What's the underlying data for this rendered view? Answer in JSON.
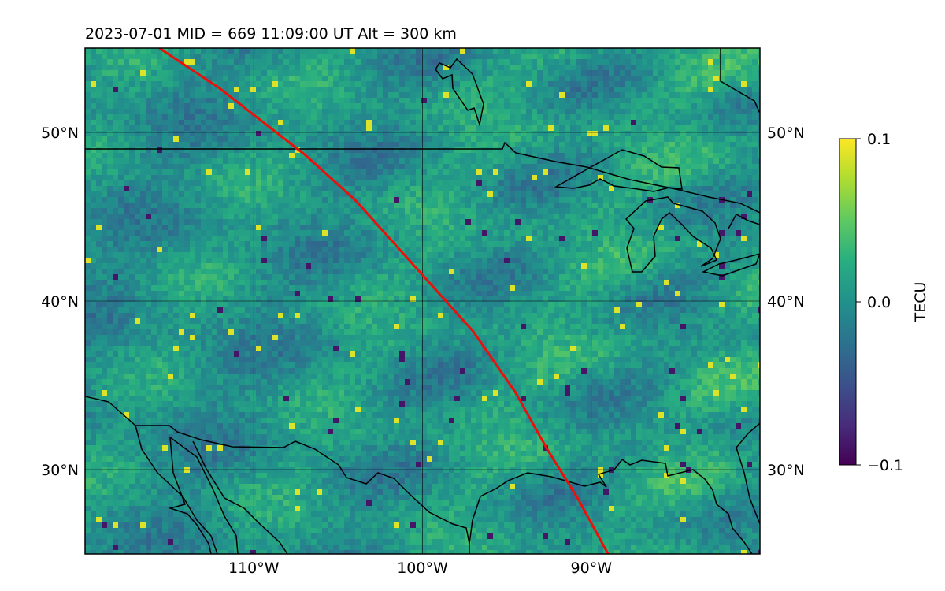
{
  "title": "2023-07-01  MID = 669    11:09:00  UT  Alt = 300 km",
  "map": {
    "lon_range": [
      -120,
      -80
    ],
    "lat_range": [
      25,
      55
    ],
    "lon_ticks": [
      {
        "value": -110,
        "label": "110°W"
      },
      {
        "value": -100,
        "label": "100°W"
      },
      {
        "value": -90,
        "label": "90°W"
      }
    ],
    "lat_ticks": [
      {
        "value": 50,
        "label": "50°N"
      },
      {
        "value": 40,
        "label": "40°N"
      },
      {
        "value": 30,
        "label": "30°N"
      }
    ],
    "gridlines": true,
    "field_colormap": "viridis",
    "track_color": "#e8120c",
    "track": [
      [
        -115.6,
        55
      ],
      [
        -112,
        52.6
      ],
      [
        -107,
        48.7
      ],
      [
        -104,
        46
      ],
      [
        -100.5,
        42.1
      ],
      [
        -97,
        38.2
      ],
      [
        -94.5,
        34.6
      ],
      [
        -92.6,
        31.2
      ],
      [
        -90.8,
        28.3
      ],
      [
        -89,
        25
      ]
    ],
    "coast_color": "#000000"
  },
  "colorbar": {
    "label": "TECU",
    "min": -0.1,
    "max": 0.1,
    "ticks": [
      {
        "value": 0.1,
        "label": "0.1"
      },
      {
        "value": 0.0,
        "label": "0.0"
      },
      {
        "value": -0.1,
        "label": "−0.1"
      }
    ]
  }
}
